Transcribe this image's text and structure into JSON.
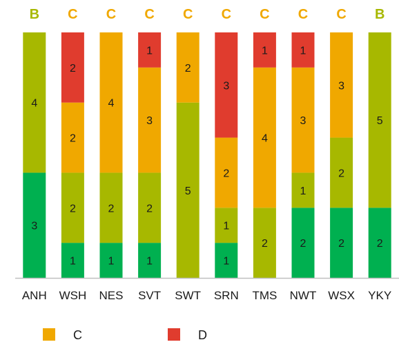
{
  "chart_data": {
    "type": "bar",
    "stacked": true,
    "categories": [
      "ANH",
      "WSH",
      "NES",
      "SVT",
      "SWT",
      "SRN",
      "TMS",
      "NWT",
      "WSX",
      "YKY"
    ],
    "grades": [
      "B",
      "C",
      "C",
      "C",
      "C",
      "C",
      "C",
      "C",
      "C",
      "B"
    ],
    "series": [
      {
        "color": "#00b050",
        "values": [
          3,
          1,
          1,
          1,
          0,
          1,
          0,
          2,
          2,
          2
        ]
      },
      {
        "color": "#a7b800",
        "values": [
          4,
          2,
          2,
          2,
          5,
          1,
          2,
          1,
          2,
          5
        ]
      },
      {
        "name": "C",
        "color": "#f0a800",
        "values": [
          0,
          2,
          4,
          3,
          2,
          2,
          4,
          3,
          3,
          0
        ]
      },
      {
        "name": "D",
        "color": "#e03c2e",
        "values": [
          0,
          2,
          0,
          1,
          0,
          3,
          1,
          1,
          0,
          0
        ]
      }
    ],
    "grade_colors": {
      "B": "#a7b800",
      "C": "#f0a800"
    },
    "ylim": [
      0,
      7
    ],
    "grid": false,
    "legend": {
      "position": "bottom",
      "entries": [
        "C",
        "D"
      ]
    },
    "xlabel": "",
    "ylabel": "",
    "title": ""
  }
}
